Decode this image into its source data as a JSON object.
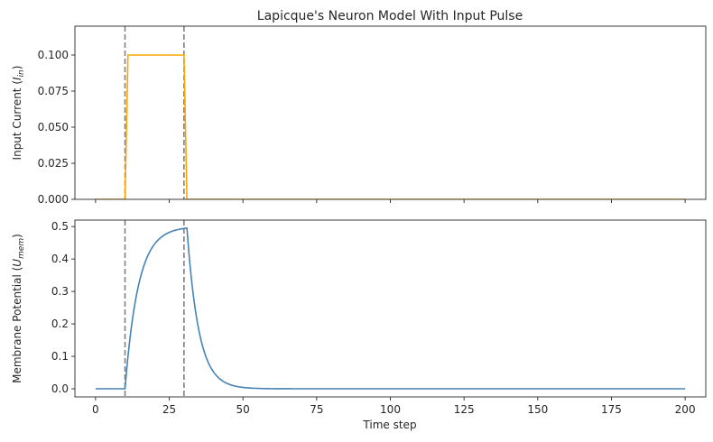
{
  "title": "Lapicque's Neuron Model With Input Pulse",
  "xlabel": "Time step",
  "colors": {
    "current": "#ffa500",
    "potential": "#4682b4",
    "vline": "#808080",
    "axis": "#262626"
  },
  "chart_data": [
    {
      "type": "line",
      "ylabel": {
        "main": "Input Current (",
        "sym": "I",
        "sub": "in",
        "close": ")"
      },
      "xlim": [
        -7,
        207
      ],
      "ylim": [
        0,
        0.12
      ],
      "xticks": [
        0,
        25,
        50,
        75,
        100,
        125,
        150,
        175,
        200
      ],
      "show_xtick_labels": false,
      "yticks": [
        0.0,
        0.025,
        0.05,
        0.075,
        0.1
      ],
      "ytick_labels": [
        "0.000",
        "0.025",
        "0.050",
        "0.075",
        "0.100"
      ],
      "vlines": [
        10,
        30
      ],
      "series": [
        {
          "color": "#ffa500",
          "points": [
            [
              0,
              0
            ],
            [
              10,
              0
            ],
            [
              11,
              0.1
            ],
            [
              30,
              0.1
            ],
            [
              31,
              0
            ],
            [
              200,
              0
            ]
          ]
        }
      ]
    },
    {
      "type": "line",
      "ylabel": {
        "main": "Membrane Potential (",
        "sym": "U",
        "sub": "mem",
        "close": ")"
      },
      "xlim": [
        -7,
        207
      ],
      "ylim": [
        -0.025,
        0.52
      ],
      "xticks": [
        0,
        25,
        50,
        75,
        100,
        125,
        150,
        175,
        200
      ],
      "xtick_labels": [
        "0",
        "25",
        "50",
        "75",
        "100",
        "125",
        "150",
        "175",
        "200"
      ],
      "show_xtick_labels": true,
      "yticks": [
        0.0,
        0.1,
        0.2,
        0.3,
        0.4,
        0.5
      ],
      "ytick_labels": [
        "0.0",
        "0.1",
        "0.2",
        "0.3",
        "0.4",
        "0.5"
      ],
      "vlines": [
        10,
        30
      ],
      "series": [
        {
          "color": "#4682b4",
          "model": {
            "start": 10,
            "rise_tau": 4.5,
            "peak_time": 30,
            "decay_tau": 4.0,
            "amplitude": 0.5
          },
          "x_range": [
            0,
            200
          ]
        }
      ]
    }
  ]
}
